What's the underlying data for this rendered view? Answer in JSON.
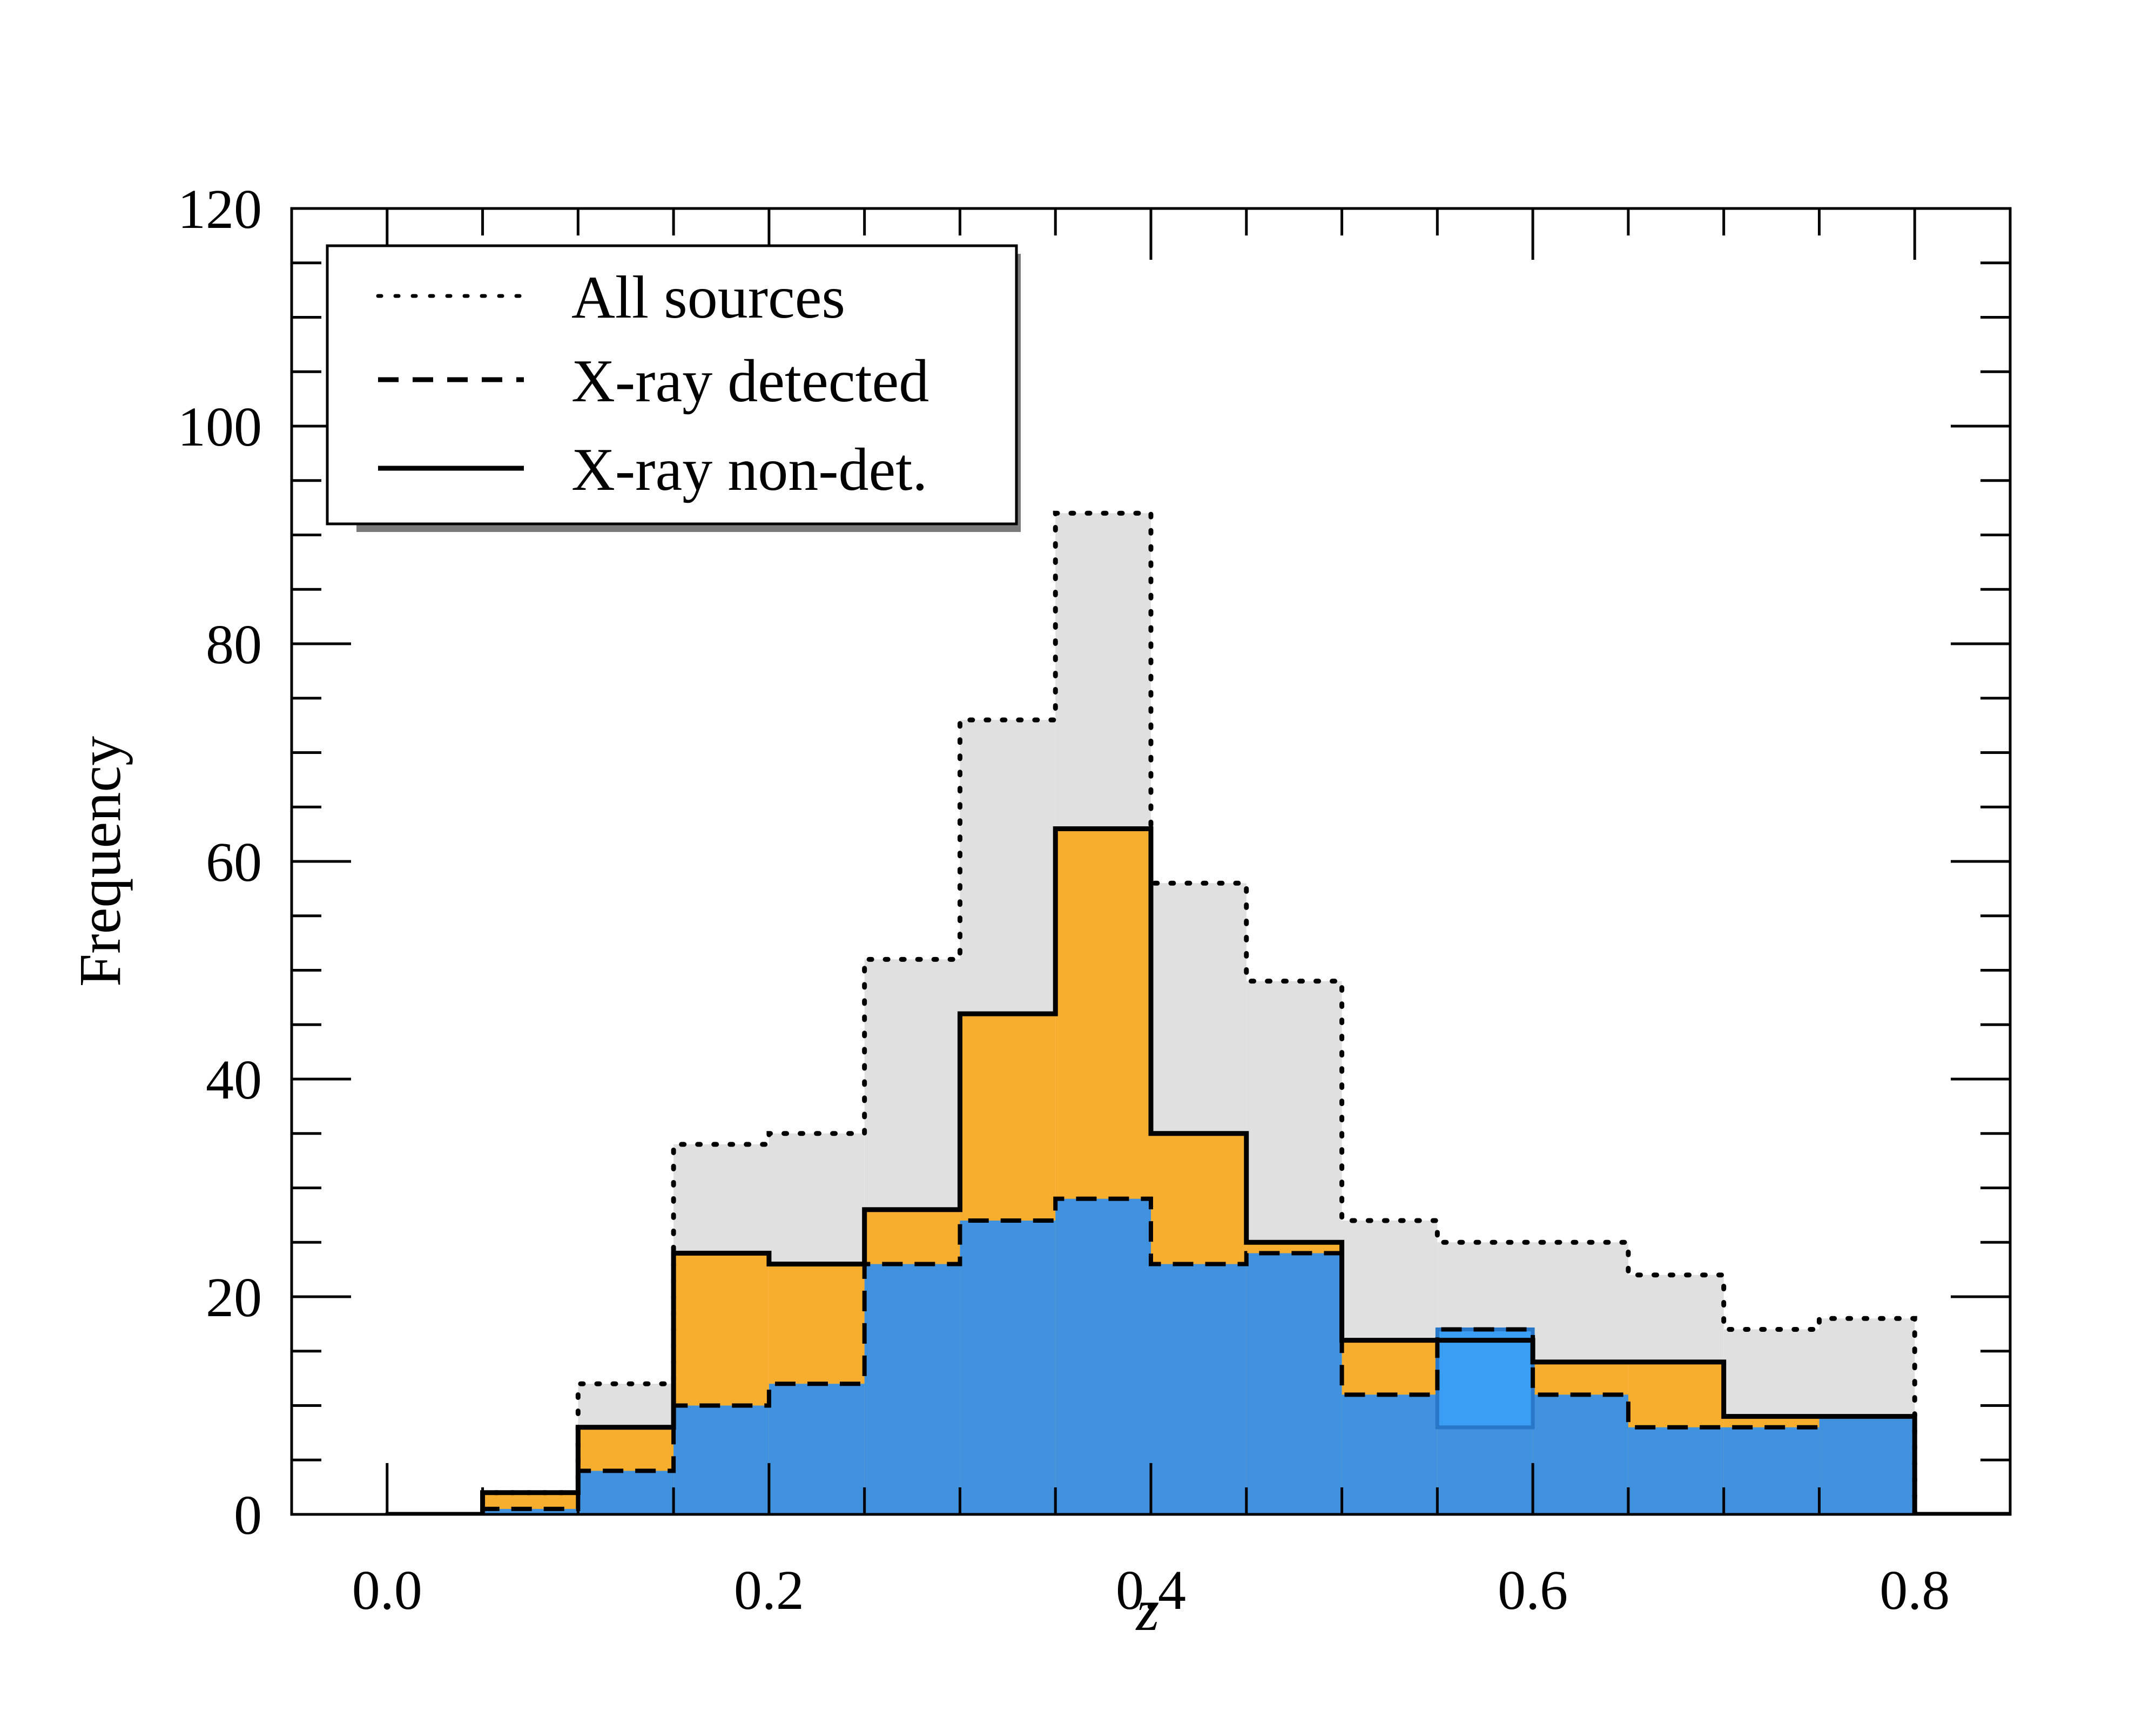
{
  "chart_data": {
    "type": "histogram",
    "title": "",
    "xlabel": "z",
    "ylabel": "Frequency",
    "xlim": [
      -0.05,
      0.85
    ],
    "ylim": [
      0,
      120
    ],
    "xticks": [
      0.0,
      0.2,
      0.4,
      0.6,
      0.8
    ],
    "xtick_labels": [
      "0.0",
      "0.2",
      "0.4",
      "0.6",
      "0.8"
    ],
    "yticks": [
      0,
      20,
      40,
      60,
      80,
      100,
      120
    ],
    "ytick_labels": [
      "0",
      "20",
      "40",
      "60",
      "80",
      "100",
      "120"
    ],
    "bin_edges": [
      0.0,
      0.05,
      0.1,
      0.15,
      0.2,
      0.25,
      0.3,
      0.35,
      0.4,
      0.45,
      0.5,
      0.55,
      0.6,
      0.65,
      0.7,
      0.75,
      0.8
    ],
    "series": [
      {
        "name": "All sources",
        "style": "dotted",
        "fill": "#e0e0e0",
        "values": [
          0,
          2,
          12,
          34,
          35,
          51,
          73,
          92,
          58,
          49,
          27,
          25,
          25,
          22,
          17,
          18
        ]
      },
      {
        "name": "X-ray non-det.",
        "style": "solid",
        "fill": "#f7ae2f",
        "values": [
          0,
          2,
          8,
          24,
          23,
          28,
          46,
          63,
          35,
          25,
          16,
          16,
          14,
          14,
          9,
          9
        ]
      },
      {
        "name": "X-ray detected",
        "style": "dashed",
        "fill": "#4192de",
        "values": [
          0,
          0.5,
          4,
          10,
          12,
          23,
          27,
          29,
          23,
          24,
          11,
          17,
          11,
          8,
          8,
          9
        ]
      }
    ],
    "highlight": {
      "bin_start": 0.55,
      "bin_end": 0.6,
      "from": 8,
      "to": 17,
      "color": "#3b9ef5"
    },
    "legend": {
      "position": "top-left",
      "entries": [
        {
          "label": "All sources",
          "style": "dotted"
        },
        {
          "label": "X-ray detected",
          "style": "dashed"
        },
        {
          "label": "X-ray non-det.",
          "style": "solid"
        }
      ]
    }
  }
}
